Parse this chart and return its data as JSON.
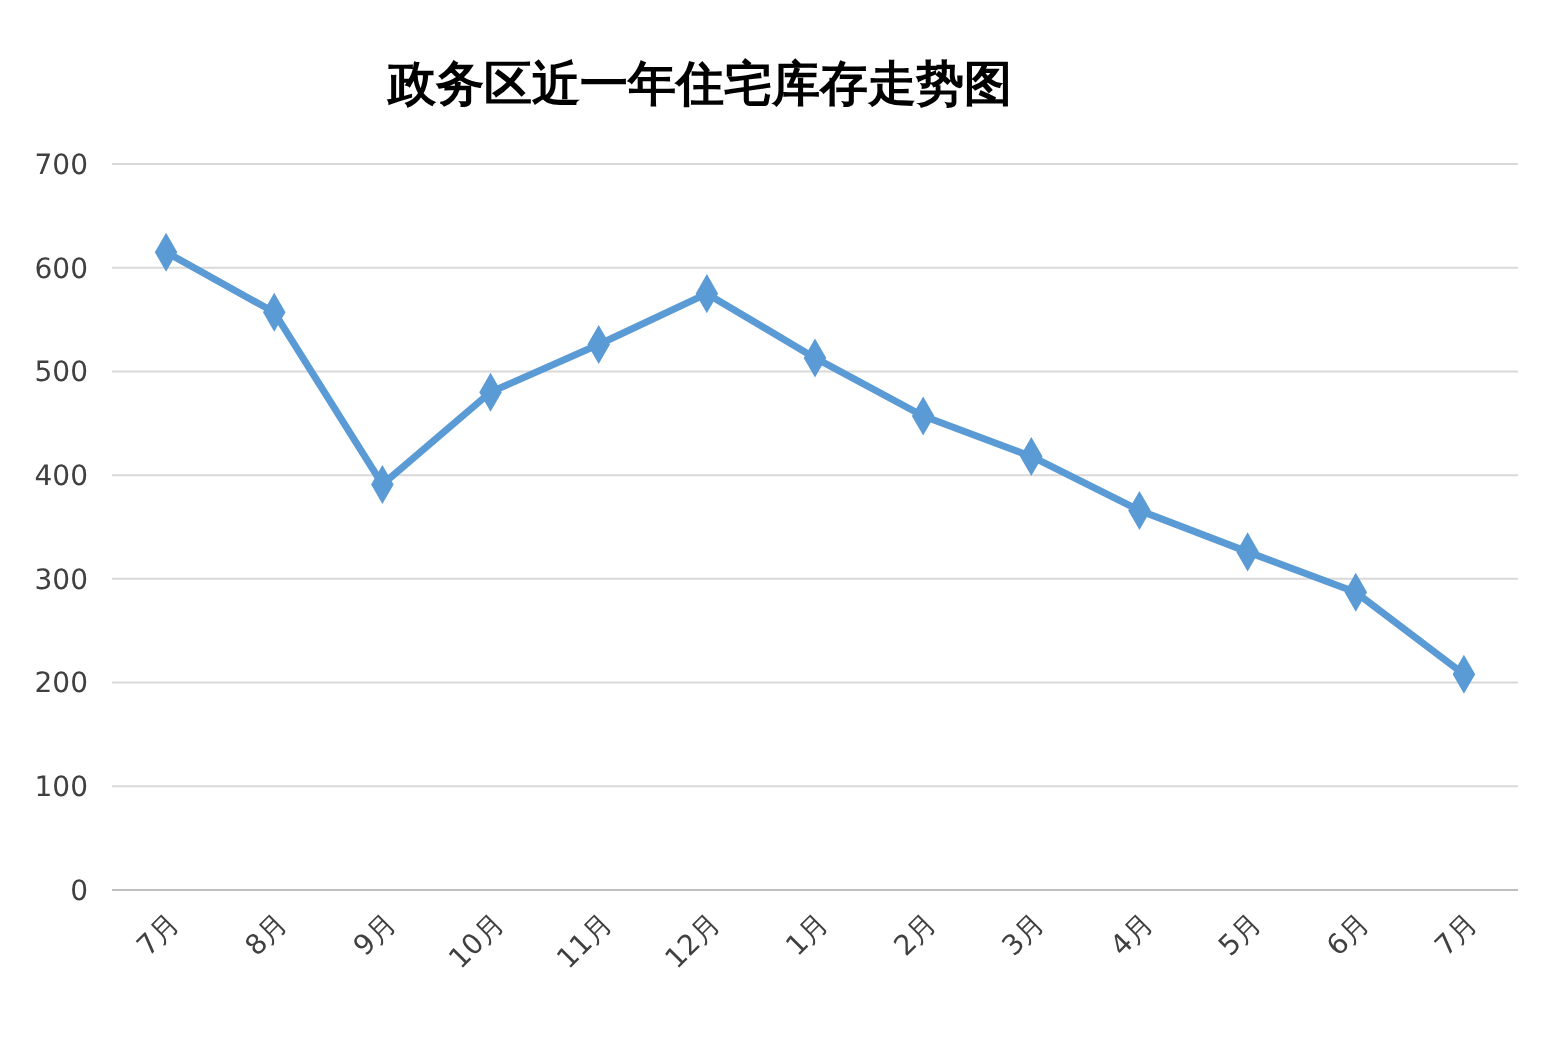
{
  "chart_data": {
    "type": "line",
    "title": "政务区近一年住宅库存走势图",
    "categories": [
      "7月",
      "8月",
      "9月",
      "10月",
      "11月",
      "12月",
      "1月",
      "2月",
      "3月",
      "4月",
      "5月",
      "6月",
      "7月"
    ],
    "series": [
      {
        "color": "#5b9bd5",
        "values": [
          615,
          557,
          391,
          480,
          526,
          575,
          513,
          457,
          418,
          366,
          326,
          287,
          208
        ]
      }
    ],
    "ylim": [
      0,
      700
    ],
    "yticks": [
      0,
      100,
      200,
      300,
      400,
      500,
      600,
      700
    ],
    "grid": "y",
    "marker": "diamond",
    "line_style": "solid"
  }
}
